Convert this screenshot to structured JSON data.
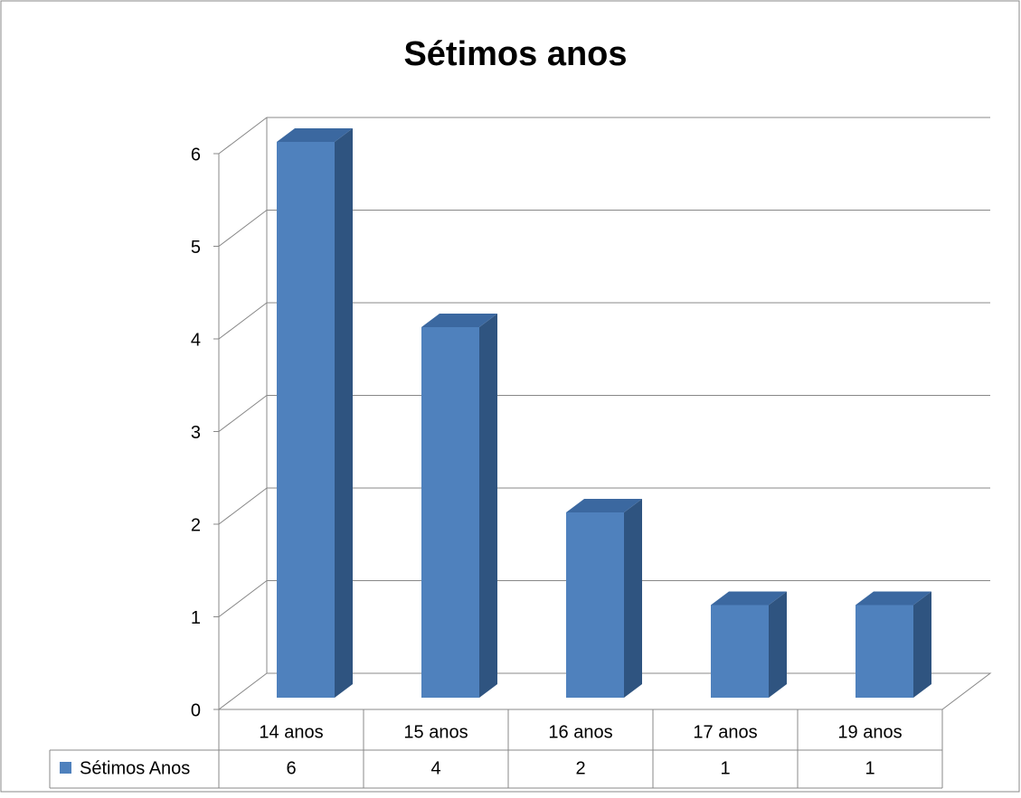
{
  "chart_data": {
    "type": "bar3d",
    "title": "Sétimos anos",
    "categories": [
      "14 anos",
      "15 anos",
      "16 anos",
      "17 anos",
      "19 anos"
    ],
    "series": [
      {
        "name": "Sétimos Anos",
        "color": "#4f81bd",
        "values": [
          6,
          4,
          2,
          1,
          1
        ]
      }
    ],
    "ylim": [
      0,
      6
    ],
    "yticks": [
      0,
      1,
      2,
      3,
      4,
      5,
      6
    ],
    "grid": true,
    "legend": "table"
  }
}
